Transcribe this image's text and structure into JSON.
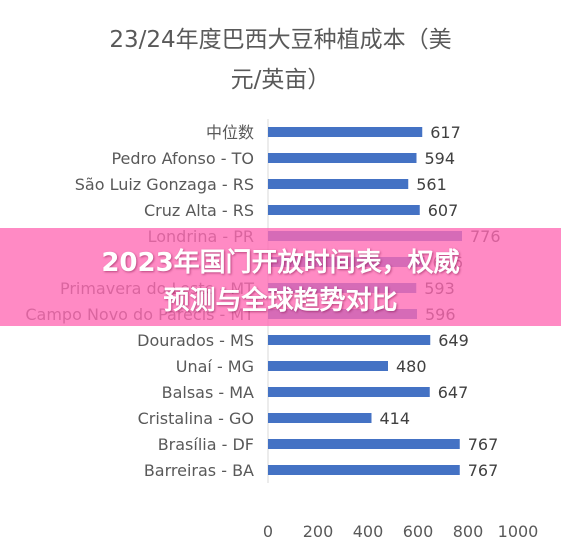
{
  "chart_data": {
    "type": "bar",
    "orientation": "horizontal",
    "title_lines": [
      "23/24年度巴西大豆种植成本（美",
      "元/英亩）"
    ],
    "categories": [
      "中位数",
      "Pedro Afonso - TO",
      "São Luiz Gonzaga - RS",
      "Cruz Alta - RS",
      "Londrina - PR",
      "",
      "Primavera do Leste - MT",
      "Campo Novo do Parecis - MT",
      "Dourados - MS",
      "Unaí - MG",
      "Balsas - MA",
      "Cristalina - GO",
      "Brasília - DF",
      "Barreiras - BA"
    ],
    "values": [
      617,
      594,
      561,
      607,
      776,
      626,
      593,
      596,
      649,
      480,
      647,
      414,
      767,
      767
    ],
    "xlim": [
      0,
      1000
    ],
    "xticks": [
      0,
      200,
      400,
      600,
      800,
      1000
    ],
    "grid": false,
    "legend": "none",
    "bar_color": "#4472C4"
  },
  "overlay": {
    "banner_line1": "2023年国门开放时间表，权威",
    "banner_line2": "预测与全球趋势对比",
    "banner_color": "#FF69B4"
  }
}
